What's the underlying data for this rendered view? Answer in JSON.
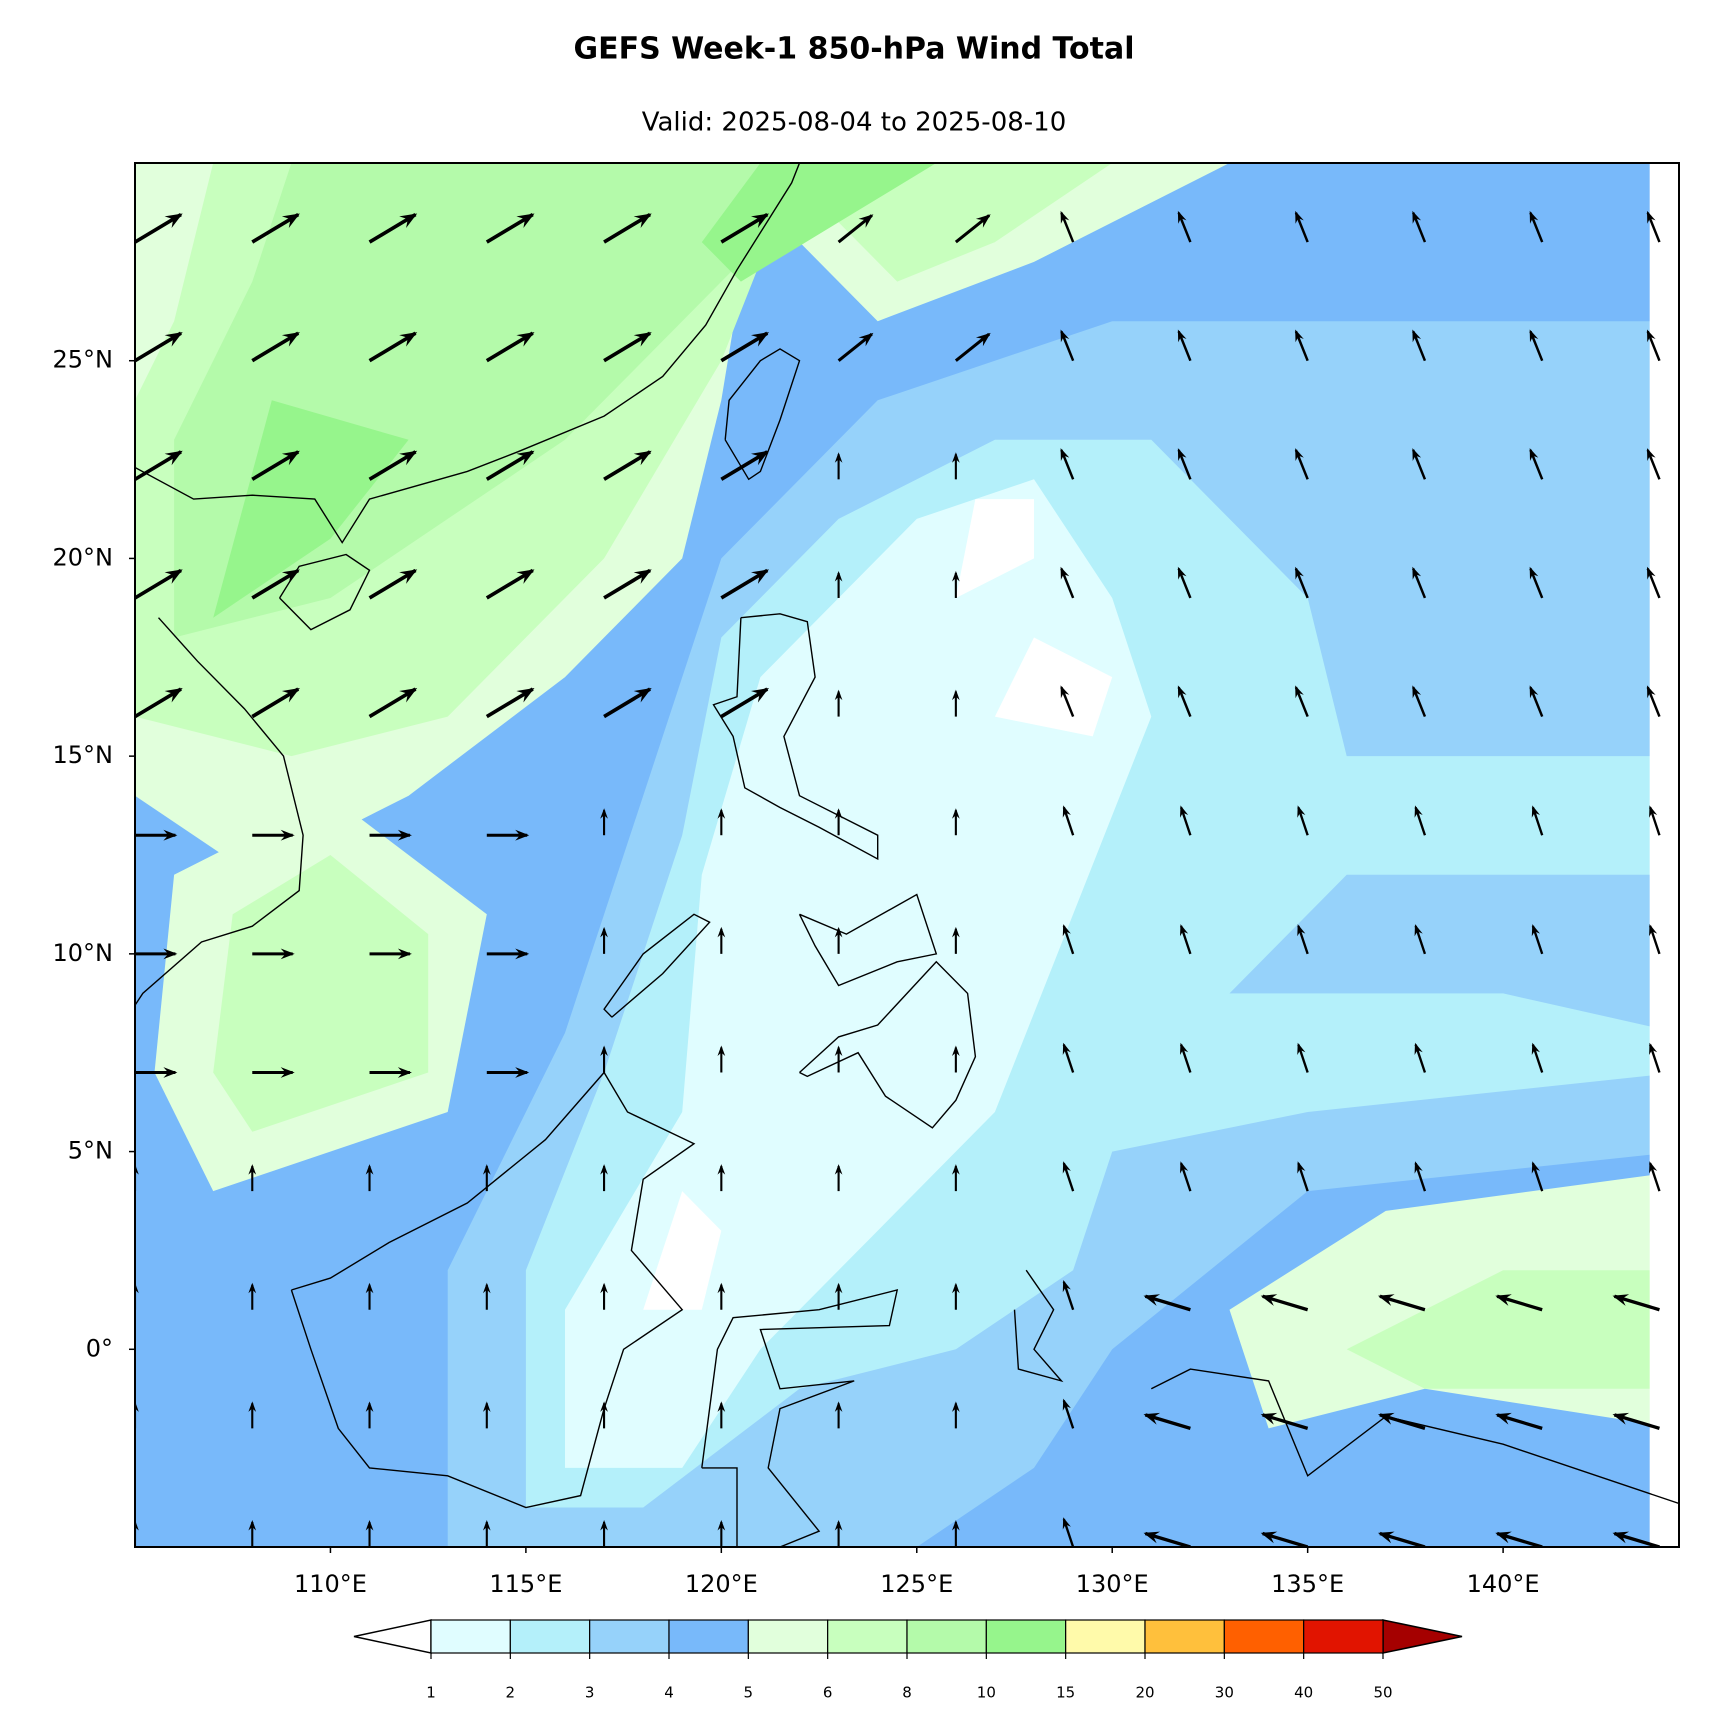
{
  "title": "GEFS Week-1 850-hPa Wind Total",
  "subtitle": "Valid: 2025-08-04 to 2025-08-10",
  "map": {
    "lon_range": [
      105,
      144.5
    ],
    "lat_range": [
      -5,
      30
    ],
    "lon_ticks": [
      {
        "value": 110,
        "label": "110°E"
      },
      {
        "value": 115,
        "label": "115°E"
      },
      {
        "value": 120,
        "label": "120°E"
      },
      {
        "value": 125,
        "label": "125°E"
      },
      {
        "value": 130,
        "label": "130°E"
      },
      {
        "value": 135,
        "label": "135°E"
      },
      {
        "value": 140,
        "label": "140°E"
      }
    ],
    "lat_ticks": [
      {
        "value": 25,
        "label": "25°N"
      },
      {
        "value": 20,
        "label": "20°N"
      },
      {
        "value": 15,
        "label": "15°N"
      },
      {
        "value": 10,
        "label": "10°N"
      },
      {
        "value": 5,
        "label": "5°N"
      },
      {
        "value": 0,
        "label": "0°"
      }
    ]
  },
  "colorbar": {
    "levels": [
      1,
      2,
      3,
      4,
      5,
      6,
      8,
      10,
      15,
      20,
      30,
      40,
      50
    ],
    "colors": [
      "#e0fdff",
      "#b4f0fa",
      "#96d2fa",
      "#78b9fa",
      "#e1ffdc",
      "#c8ffbe",
      "#b4faaa",
      "#96f58c",
      "#fffaaa",
      "#ffc03c",
      "#ff6000",
      "#e11400"
    ],
    "under_color": "#ffffff",
    "over_color": "#a50000"
  }
}
